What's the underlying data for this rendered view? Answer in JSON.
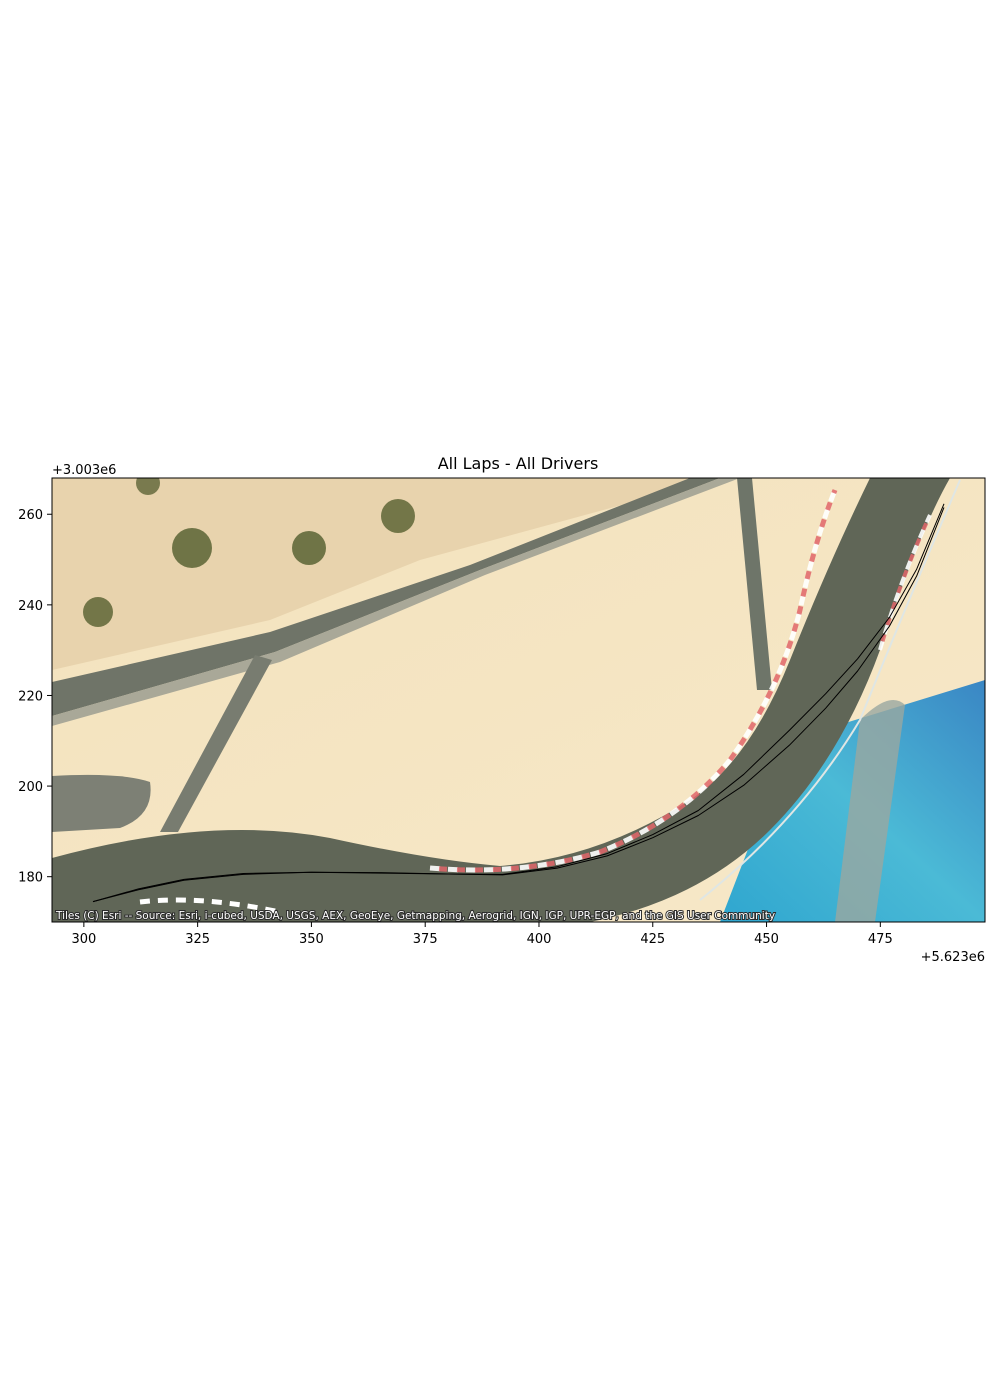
{
  "chart_data": {
    "type": "line",
    "title": "All Laps - All Drivers",
    "x_offset_label": "+5.623e6",
    "y_offset_label": "+3.003e6",
    "xlim": [
      293,
      498
    ],
    "ylim": [
      170,
      268
    ],
    "x_ticks": [
      300,
      325,
      350,
      375,
      400,
      425,
      450,
      475
    ],
    "y_ticks": [
      180,
      200,
      220,
      240,
      260
    ],
    "basemap": "satellite imagery",
    "attribution": "Tiles (C) Esri -- Source: Esri, i-cubed, USDA, USGS, AEX, GeoEye, Getmapping, Aerogrid, IGN, IGP, UPR-EGP, and the GIS User Community",
    "line_color": "#000000",
    "series": [
      {
        "x": [
          302,
          312,
          322,
          335,
          350,
          365,
          380,
          392,
          404,
          415,
          425,
          435,
          445,
          455,
          463,
          470,
          477,
          483,
          489
        ],
        "y": [
          174.5,
          177.3,
          179.4,
          180.7,
          181.0,
          180.8,
          180.6,
          180.4,
          181.9,
          184.6,
          188.6,
          193.5,
          200.2,
          209.0,
          217.2,
          225.4,
          235.3,
          246.4,
          261.5
        ]
      },
      {
        "x": [
          302,
          312,
          322,
          335,
          350,
          365,
          380,
          392,
          404,
          415,
          425,
          435,
          445,
          455,
          463,
          470,
          477,
          483,
          489
        ],
        "y": [
          174.5,
          177.1,
          179.2,
          180.5,
          181.0,
          180.9,
          180.6,
          180.5,
          182.2,
          185.1,
          189.3,
          194.6,
          202.6,
          212.3,
          220.4,
          228.1,
          237.2,
          247.9,
          262.3
        ]
      }
    ]
  }
}
